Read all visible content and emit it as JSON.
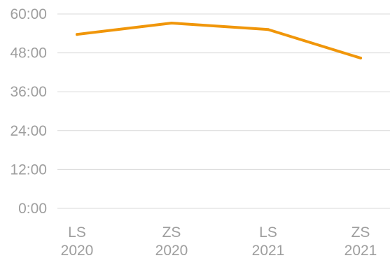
{
  "chart_data": {
    "type": "line",
    "title": "",
    "xlabel": "",
    "ylabel": "",
    "categories": [
      [
        "LS",
        "2020"
      ],
      [
        "ZS",
        "2020"
      ],
      [
        "LS",
        "2021"
      ],
      [
        "ZS",
        "2021"
      ]
    ],
    "series": [
      {
        "values": [
          53.7,
          57.2,
          55.2,
          46.4
        ],
        "color": "#f0960a"
      }
    ],
    "ylim": [
      0,
      60
    ],
    "yticks": [
      0,
      12,
      24,
      36,
      48,
      60
    ],
    "ytick_labels": [
      "0:00",
      "12:00",
      "24:00",
      "36:00",
      "48:00",
      "60:00"
    ],
    "grid": true,
    "legend": "none",
    "colors": {
      "grid": "#d9d9d9",
      "tick_text": "#9e9e9e"
    }
  }
}
